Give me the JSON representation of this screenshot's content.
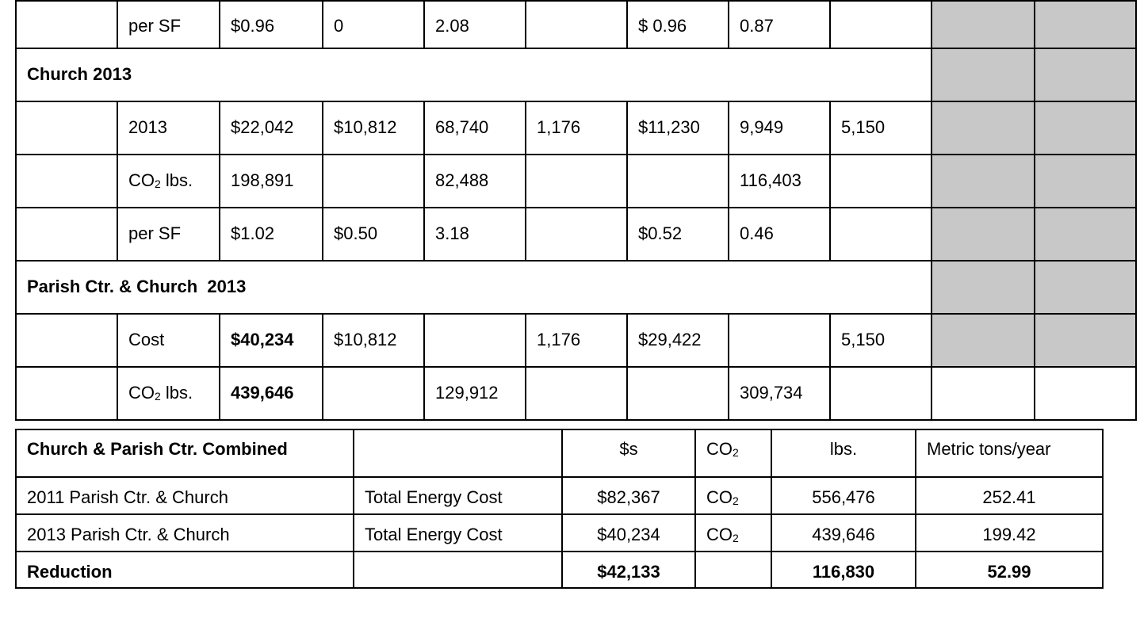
{
  "colors": {
    "shaded_cell": "#c8c8c8",
    "border": "#000000"
  },
  "upper_table": {
    "parish_per_sf": {
      "label": "per SF",
      "cells": [
        "$0.96",
        "0",
        "2.08",
        "",
        "$ 0.96",
        "0.87",
        ""
      ]
    },
    "church_2013_heading": "Church 2013",
    "church_2013_row": {
      "label": "2013",
      "cells": [
        "$22,042",
        "$10,812",
        "68,740",
        "1,176",
        "$11,230",
        "9,949",
        "5,150"
      ]
    },
    "church_co2_row": {
      "label_main": "CO",
      "label_sub": "2",
      "label_tail": " lbs.",
      "cells": [
        "198,891",
        "",
        "82,488",
        "",
        "",
        "116,403",
        ""
      ]
    },
    "church_per_sf": {
      "label": "per SF",
      "cells": [
        "$1.02",
        "$0.50",
        "3.18",
        "",
        "$0.52",
        "0.46",
        ""
      ]
    },
    "combined_2013_heading": "Parish Ctr. & Church  2013",
    "cost_row": {
      "label": "Cost",
      "cells": [
        "$40,234",
        "$10,812",
        "",
        "1,176",
        "$29,422",
        "",
        "5,150"
      ]
    },
    "combined_co2_row": {
      "label_main": "CO",
      "label_sub": "2",
      "label_tail": " lbs.",
      "cells": [
        "439,646",
        "",
        "129,912",
        "",
        "",
        "309,734",
        ""
      ]
    }
  },
  "lower_table": {
    "header": {
      "title": "Church & Parish Ctr. Combined",
      "dollars": "$s",
      "co2_main": "CO",
      "co2_sub": "2",
      "lbs": "lbs.",
      "metric": "Metric tons/year"
    },
    "rows": [
      {
        "label": "2011 Parish Ctr. & Church",
        "type": "Total Energy Cost",
        "dollars": "$82,367",
        "co2_main": "CO",
        "co2_sub": "2",
        "lbs": "556,476",
        "metric": "252.41"
      },
      {
        "label": "2013 Parish Ctr. & Church",
        "type": "Total Energy Cost",
        "dollars": "$40,234",
        "co2_main": "CO",
        "co2_sub": "2",
        "lbs": "439,646",
        "metric": "199.42"
      }
    ],
    "reduction": {
      "label": "Reduction",
      "dollars": "$42,133",
      "lbs": "116,830",
      "metric": "52.99"
    }
  }
}
